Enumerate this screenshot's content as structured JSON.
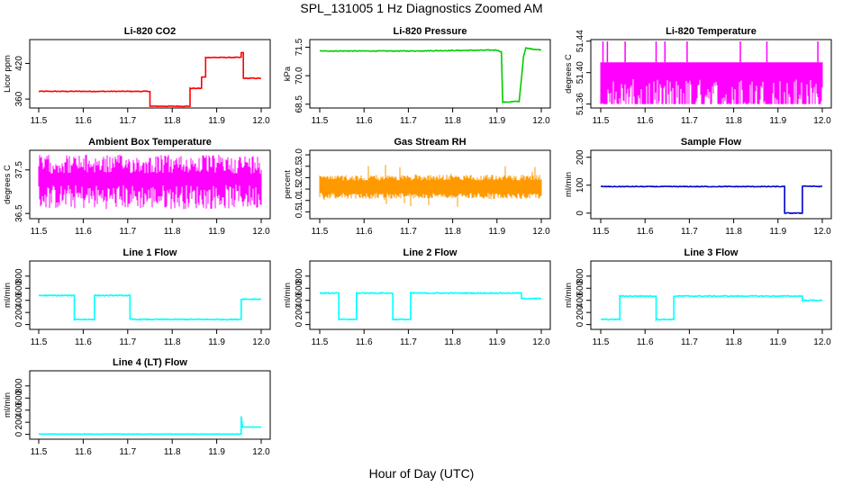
{
  "page": {
    "title": "SPL_131005  1 Hz Diagnostics Zoomed AM",
    "xlabel": "Hour of Day (UTC)"
  },
  "chart_data": [
    {
      "type": "line",
      "title": "Li-820 CO2",
      "ylabel": "Licor ppm",
      "color": "#ff0000",
      "xlim": [
        11.5,
        12.0
      ],
      "ylim": [
        345,
        460
      ],
      "xticks": [
        "11.5",
        "11.6",
        "11.7",
        "11.8",
        "11.9",
        "12.0"
      ],
      "yticks": [
        {
          "v": 360,
          "t": "360"
        },
        {
          "v": 420,
          "t": "420"
        }
      ],
      "noise": 0.6,
      "x": [
        11.5,
        11.75,
        11.75,
        11.84,
        11.84,
        11.866,
        11.866,
        11.875,
        11.875,
        11.955,
        11.955,
        11.96,
        11.96,
        12.0
      ],
      "y": [
        373,
        373,
        348,
        348,
        378,
        378,
        397,
        397,
        430,
        430,
        438,
        438,
        395,
        395
      ]
    },
    {
      "type": "line",
      "title": "Li-820 Pressure",
      "ylabel": "kPa",
      "color": "#00cc00",
      "xlim": [
        11.5,
        12.0
      ],
      "ylim": [
        68.3,
        71.9
      ],
      "xticks": [
        "11.5",
        "11.6",
        "11.7",
        "11.8",
        "11.9",
        "12.0"
      ],
      "yticks": [
        {
          "v": 68.5,
          "t": "68.5"
        },
        {
          "v": 70.0,
          "t": "70.0"
        },
        {
          "v": 71.5,
          "t": "71.5"
        }
      ],
      "noise": 0.02,
      "x": [
        11.5,
        11.7,
        11.9,
        11.91,
        11.913,
        11.95,
        11.96,
        11.965,
        12.0
      ],
      "y": [
        71.3,
        71.3,
        71.35,
        71.25,
        68.6,
        68.65,
        71.0,
        71.45,
        71.35
      ]
    },
    {
      "type": "line",
      "title": "Li-820 Temperature",
      "ylabel": "degrees C",
      "color": "#ff00ff",
      "xlim": [
        11.5,
        12.0
      ],
      "ylim": [
        51.355,
        51.442
      ],
      "xticks": [
        "11.5",
        "11.6",
        "11.7",
        "11.8",
        "11.9",
        "12.0"
      ],
      "yticks": [
        {
          "v": 51.36,
          "t": "51.36"
        },
        {
          "v": 51.4,
          "t": "51.40"
        },
        {
          "v": 51.44,
          "t": "51.44"
        }
      ],
      "band": {
        "low": 51.36,
        "high": 51.413
      },
      "spikes": [
        11.505,
        11.515,
        11.555,
        11.625,
        11.645,
        11.695,
        11.815,
        11.875,
        11.99
      ]
    },
    {
      "type": "line",
      "title": "Ambient Box Temperature",
      "ylabel": "degrees C",
      "color": "#ff00ff",
      "xlim": [
        11.5,
        12.0
      ],
      "ylim": [
        36.38,
        37.95
      ],
      "xticks": [
        "11.5",
        "11.6",
        "11.7",
        "11.8",
        "11.9",
        "12.0"
      ],
      "yticks": [
        {
          "v": 36.5,
          "t": "36.5"
        },
        {
          "v": 37.5,
          "t": "37.5"
        }
      ],
      "band": {
        "low": 36.6,
        "high": 37.85
      }
    },
    {
      "type": "line",
      "title": "Gas Stream RH",
      "ylabel": "percent",
      "color": "#ff9900",
      "xlim": [
        11.5,
        12.0
      ],
      "ylim": [
        0.2,
        3.2
      ],
      "xticks": [
        "11.5",
        "11.6",
        "11.7",
        "11.8",
        "11.9",
        "12.0"
      ],
      "yticks": [
        {
          "v": 0.5,
          "t": "0.5"
        },
        {
          "v": 1.0,
          "t": "1.0"
        },
        {
          "v": 1.5,
          "t": "1.5"
        },
        {
          "v": 2.0,
          "t": "2.0"
        },
        {
          "v": 2.5,
          "t": "2.5"
        },
        {
          "v": 3.0,
          "t": "3.0"
        }
      ],
      "band": {
        "low": 1.1,
        "high": 2.1
      }
    },
    {
      "type": "line",
      "title": "Sample Flow",
      "ylabel": "ml/min",
      "color": "#0000cc",
      "xlim": [
        11.5,
        12.0
      ],
      "ylim": [
        -20,
        225
      ],
      "xticks": [
        "11.5",
        "11.6",
        "11.7",
        "11.8",
        "11.9",
        "12.0"
      ],
      "yticks": [
        {
          "v": 0,
          "t": "0"
        },
        {
          "v": 100,
          "t": "100"
        },
        {
          "v": 200,
          "t": "200"
        }
      ],
      "noise": 1.2,
      "x": [
        11.5,
        11.915,
        11.915,
        11.955,
        11.955,
        12.0
      ],
      "y": [
        95,
        95,
        0,
        0,
        97,
        95
      ]
    },
    {
      "type": "line",
      "title": "Line 1 Flow",
      "ylabel": "ml/min",
      "color": "#00ffff",
      "xlim": [
        11.5,
        12.0
      ],
      "ylim": [
        -80,
        1050
      ],
      "xticks": [
        "11.5",
        "11.6",
        "11.7",
        "11.8",
        "11.9",
        "12.0"
      ],
      "yticks": [
        {
          "v": 0,
          "t": "0"
        },
        {
          "v": 200,
          "t": "200"
        },
        {
          "v": 400,
          "t": "400"
        },
        {
          "v": 600,
          "t": "600"
        },
        {
          "v": 800,
          "t": "800"
        }
      ],
      "noise": 8,
      "x": [
        11.5,
        11.58,
        11.58,
        11.625,
        11.625,
        11.705,
        11.705,
        11.955,
        11.955,
        12.0
      ],
      "y": [
        480,
        480,
        85,
        85,
        480,
        480,
        85,
        85,
        420,
        420
      ]
    },
    {
      "type": "line",
      "title": "Line 2 Flow",
      "ylabel": "ml/min",
      "color": "#00ffff",
      "xlim": [
        11.5,
        12.0
      ],
      "ylim": [
        -80,
        1050
      ],
      "xticks": [
        "11.5",
        "11.6",
        "11.7",
        "11.8",
        "11.9",
        "12.0"
      ],
      "yticks": [
        {
          "v": 0,
          "t": "0"
        },
        {
          "v": 200,
          "t": "200"
        },
        {
          "v": 400,
          "t": "400"
        },
        {
          "v": 600,
          "t": "600"
        },
        {
          "v": 800,
          "t": "800"
        }
      ],
      "noise": 8,
      "x": [
        11.5,
        11.543,
        11.543,
        11.583,
        11.583,
        11.665,
        11.665,
        11.705,
        11.705,
        11.955,
        11.955,
        12.0
      ],
      "y": [
        520,
        520,
        85,
        85,
        520,
        520,
        85,
        85,
        520,
        520,
        430,
        430
      ]
    },
    {
      "type": "line",
      "title": "Line 3 Flow",
      "ylabel": "ml/min",
      "color": "#00ffff",
      "xlim": [
        11.5,
        12.0
      ],
      "ylim": [
        -80,
        1050
      ],
      "xticks": [
        "11.5",
        "11.6",
        "11.7",
        "11.8",
        "11.9",
        "12.0"
      ],
      "yticks": [
        {
          "v": 0,
          "t": "0"
        },
        {
          "v": 200,
          "t": "200"
        },
        {
          "v": 400,
          "t": "400"
        },
        {
          "v": 600,
          "t": "600"
        },
        {
          "v": 800,
          "t": "800"
        }
      ],
      "noise": 8,
      "x": [
        11.5,
        11.543,
        11.543,
        11.625,
        11.625,
        11.665,
        11.665,
        11.955,
        11.955,
        12.0
      ],
      "y": [
        85,
        85,
        470,
        470,
        85,
        85,
        470,
        470,
        400,
        400
      ]
    },
    {
      "type": "line",
      "title": "Line 4 (LT) Flow",
      "ylabel": "ml/min",
      "color": "#00ffff",
      "xlim": [
        11.5,
        12.0
      ],
      "ylim": [
        -80,
        1050
      ],
      "xticks": [
        "11.5",
        "11.6",
        "11.7",
        "11.8",
        "11.9",
        "12.0"
      ],
      "yticks": [
        {
          "v": 0,
          "t": "0"
        },
        {
          "v": 200,
          "t": "200"
        },
        {
          "v": 400,
          "t": "400"
        },
        {
          "v": 600,
          "t": "600"
        },
        {
          "v": 800,
          "t": "800"
        }
      ],
      "noise": 2,
      "x": [
        11.5,
        11.955,
        11.955,
        11.958,
        11.96,
        12.0
      ],
      "y": [
        5,
        5,
        300,
        120,
        120,
        120
      ]
    }
  ]
}
